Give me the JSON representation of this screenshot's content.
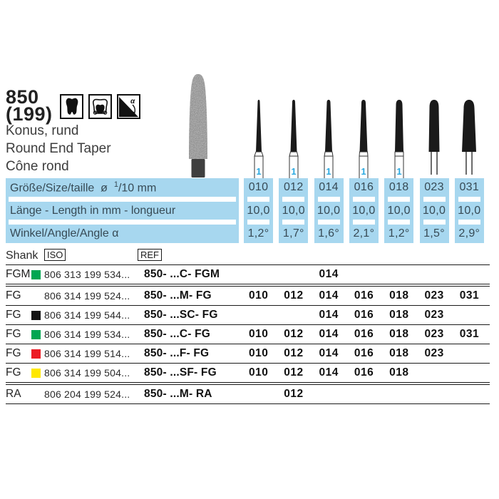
{
  "header": {
    "number": "850",
    "number_alt": "(199)",
    "name_de": "Konus, rund",
    "name_en": "Round End Taper",
    "name_fr": "Cône rond",
    "icons": [
      "molar-solid-icon",
      "crown-prep-icon",
      "angle-alpha-icon"
    ],
    "alpha_symbol": "α"
  },
  "spec_rows": [
    {
      "label_html": "Größe/Size/taille&nbsp; ø &nbsp;<sup>1</sup>/10 mm",
      "label": "Größe/Size/taille ø 1/10 mm"
    },
    {
      "label_html": "Länge - Length in mm - longueur",
      "label": "Länge - Length in mm - longueur"
    },
    {
      "label_html": "Winkel/Angle/Angle α",
      "label": "Winkel/Angle/Angle α"
    }
  ],
  "columns": [
    {
      "size": "010",
      "length": "10,0",
      "angle": "1,2°",
      "figure_label": "1"
    },
    {
      "size": "012",
      "length": "10,0",
      "angle": "1,7°",
      "figure_label": "1"
    },
    {
      "size": "014",
      "length": "10,0",
      "angle": "1,6°",
      "figure_label": "1"
    },
    {
      "size": "016",
      "length": "10,0",
      "angle": "2,1°",
      "figure_label": "1"
    },
    {
      "size": "018",
      "length": "10,0",
      "angle": "1,2°",
      "figure_label": "1"
    },
    {
      "size": "023",
      "length": "10,0",
      "angle": "1,5°",
      "figure_label": null
    },
    {
      "size": "031",
      "length": "10,0",
      "angle": "2,9°",
      "figure_label": null
    }
  ],
  "table": {
    "headers": {
      "shank": "Shank",
      "iso": "ISO",
      "ref": "REF"
    },
    "rows": [
      {
        "shank": "FGM",
        "color": "green",
        "iso": "806 313 199 534...",
        "ref": "850- ...C-  FGM",
        "sizes": [
          "014"
        ],
        "sep_after": "double"
      },
      {
        "shank": "FG",
        "color": null,
        "iso": "806 314 199 524...",
        "ref": "850- ...M-  FG",
        "sizes": [
          "010",
          "012",
          "014",
          "016",
          "018",
          "023",
          "031"
        ],
        "sep_after": "single"
      },
      {
        "shank": "FG",
        "color": "black",
        "iso": "806 314 199 544...",
        "ref": "850- ...SC- FG",
        "sizes": [
          "014",
          "016",
          "018",
          "023"
        ],
        "sep_after": "single"
      },
      {
        "shank": "FG",
        "color": "green",
        "iso": "806 314 199 534...",
        "ref": "850- ...C-  FG",
        "sizes": [
          "010",
          "012",
          "014",
          "016",
          "018",
          "023",
          "031"
        ],
        "sep_after": "single"
      },
      {
        "shank": "FG",
        "color": "red",
        "iso": "806 314 199 514...",
        "ref": "850- ...F-  FG",
        "sizes": [
          "010",
          "012",
          "014",
          "016",
          "018",
          "023"
        ],
        "sep_after": "single"
      },
      {
        "shank": "FG",
        "color": "yellow",
        "iso": "806 314 199 504...",
        "ref": "850- ...SF- FG",
        "sizes": [
          "010",
          "012",
          "014",
          "016",
          "018"
        ],
        "sep_after": "double"
      },
      {
        "shank": "RA",
        "color": null,
        "iso": "806 204 199 524...",
        "ref": "850- ...M-  RA",
        "sizes": [
          "012"
        ],
        "sep_after": "single"
      }
    ]
  },
  "colors": {
    "panel_blue": "#a7d7ef",
    "marker_blue": "#2aa9e1",
    "silhouette_black": "#1a1a1a",
    "legend": {
      "green": "#00a651",
      "black": "#131313",
      "red": "#ec1c24",
      "yellow": "#ffe800"
    }
  }
}
